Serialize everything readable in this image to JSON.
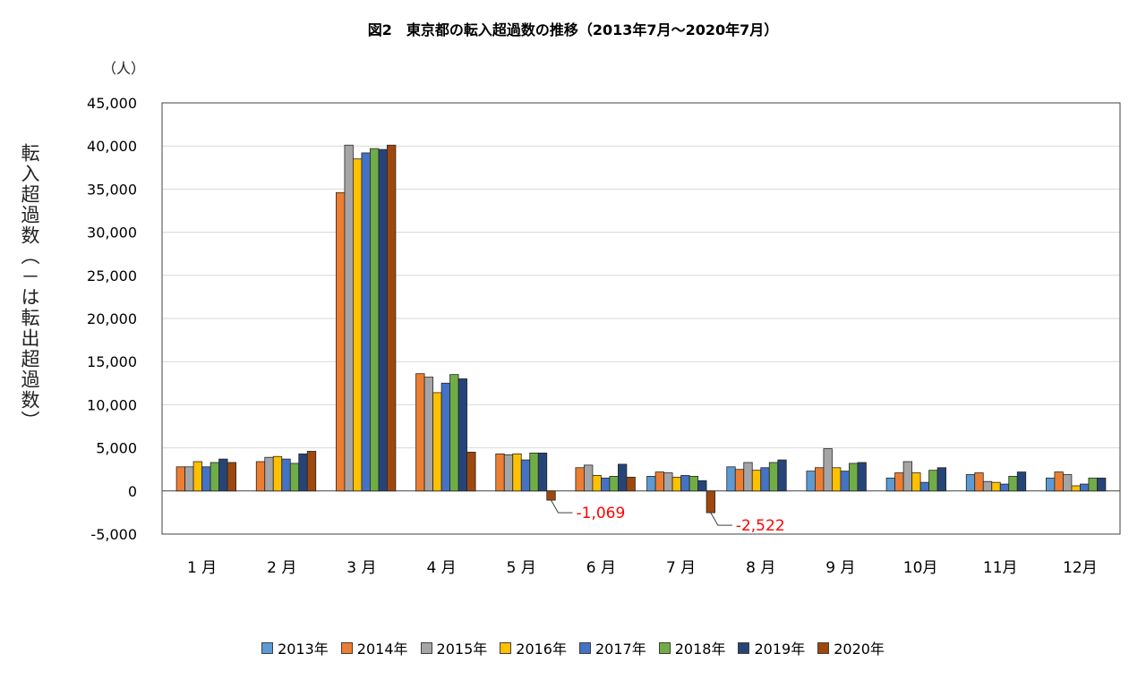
{
  "chart_data": {
    "type": "bar",
    "title": "図2　東京都の転入超過数の推移（2013年7月〜2020年7月）",
    "ylabel": "転入超過数（－は転出超過数）",
    "yunit": "（人）",
    "ylim": [
      -5000,
      45000
    ],
    "yticks": [
      -5000,
      0,
      5000,
      10000,
      15000,
      20000,
      25000,
      30000,
      35000,
      40000,
      45000
    ],
    "ytick_labels": [
      "-5,000",
      "0",
      "5,000",
      "10,000",
      "15,000",
      "20,000",
      "25,000",
      "30,000",
      "35,000",
      "40,000",
      "45,000"
    ],
    "grid": true,
    "legend_position": "bottom",
    "categories": [
      "1 月",
      "2 月",
      "3 月",
      "4 月",
      "5 月",
      "6 月",
      "7 月",
      "8 月",
      "9 月",
      "10月",
      "11月",
      "12月"
    ],
    "series": [
      {
        "name": "2013年",
        "color": "#5B9BD5",
        "values": [
          null,
          null,
          null,
          null,
          null,
          null,
          1700,
          2800,
          2300,
          1500,
          1900,
          1500
        ]
      },
      {
        "name": "2014年",
        "color": "#ED7D31",
        "values": [
          2800,
          3400,
          34600,
          13600,
          4300,
          2700,
          2200,
          2500,
          2700,
          2100,
          2100,
          2200
        ]
      },
      {
        "name": "2015年",
        "color": "#A5A5A5",
        "values": [
          2800,
          3900,
          40100,
          13200,
          4200,
          3000,
          2100,
          3300,
          4900,
          3400,
          1100,
          1900
        ]
      },
      {
        "name": "2016年",
        "color": "#FFC000",
        "values": [
          3400,
          4000,
          38500,
          11400,
          4300,
          1800,
          1600,
          2400,
          2700,
          2100,
          1000,
          600
        ]
      },
      {
        "name": "2017年",
        "color": "#4472C4",
        "values": [
          2800,
          3700,
          39200,
          12500,
          3600,
          1500,
          1800,
          2700,
          2300,
          1000,
          800,
          800
        ]
      },
      {
        "name": "2018年",
        "color": "#70AD47",
        "values": [
          3300,
          3200,
          39700,
          13500,
          4400,
          1700,
          1700,
          3300,
          3200,
          2400,
          1700,
          1500
        ]
      },
      {
        "name": "2019年",
        "color": "#264478",
        "values": [
          3700,
          4300,
          39600,
          13000,
          4400,
          3100,
          1200,
          3600,
          3300,
          2700,
          2200,
          1500
        ]
      },
      {
        "name": "2020年",
        "color": "#9E480E",
        "values": [
          3300,
          4600,
          40100,
          4500,
          -1069,
          1600,
          -2522,
          null,
          null,
          null,
          null,
          null
        ]
      }
    ],
    "annotations": [
      {
        "text": "-1,069",
        "category": "5 月",
        "series": "2020年",
        "value": -1069,
        "color": "#FF0000"
      },
      {
        "text": "-2,522",
        "category": "7 月",
        "series": "2020年",
        "value": -2522,
        "color": "#FF0000"
      }
    ]
  }
}
